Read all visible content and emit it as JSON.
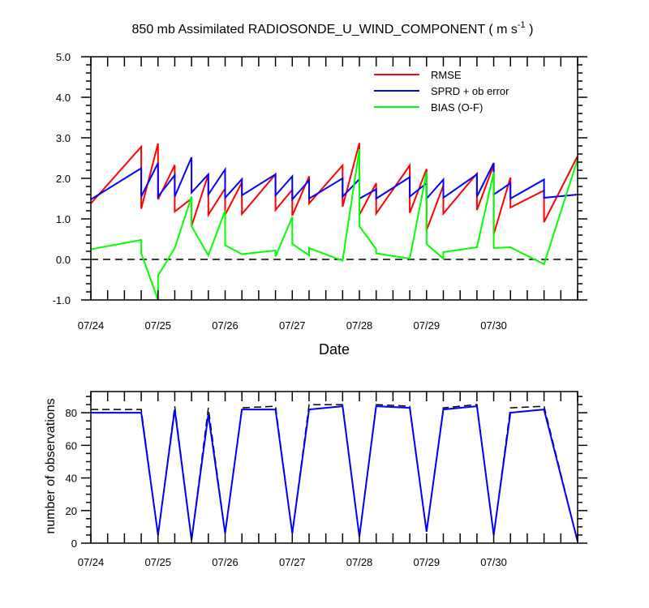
{
  "chart_data": [
    {
      "type": "line",
      "title": "850 mb Assimilated RADIOSONDE_U_WIND_COMPONENT ( m s",
      "title_superscript": "-1",
      "title_suffix": " )",
      "xlabel": "Date",
      "ylabel": "",
      "x_tick_labels": [
        "07/24",
        "07/25",
        "07/26",
        "07/27",
        "07/28",
        "07/29",
        "07/30"
      ],
      "xlim": [
        "07/24 00:00",
        "07/31 06:00"
      ],
      "ylim": [
        -1.0,
        5.0
      ],
      "y_tick_labels": [
        "-1.0",
        "0.0",
        "1.0",
        "2.0",
        "3.0",
        "4.0",
        "5.0"
      ],
      "zero_line": "dashed",
      "legend_position": "top-right",
      "series": [
        {
          "name": "RMSE",
          "color": "#ff0000",
          "points": [
            [
              "07/24 00:00",
              1.38
            ],
            [
              "07/24 18:00",
              2.78
            ],
            [
              "07/24 18:00",
              1.25
            ],
            [
              "07/25 00:00",
              2.86
            ],
            [
              "07/25 00:00",
              1.48
            ],
            [
              "07/25 06:00",
              2.33
            ],
            [
              "07/25 06:00",
              1.18
            ],
            [
              "07/25 12:00",
              1.5
            ],
            [
              "07/25 12:00",
              0.82
            ],
            [
              "07/25 18:00",
              2.1
            ],
            [
              "07/25 18:00",
              1.1
            ],
            [
              "07/26 00:00",
              1.75
            ],
            [
              "07/26 00:00",
              1.1
            ],
            [
              "07/26 06:00",
              1.9
            ],
            [
              "07/26 06:00",
              1.12
            ],
            [
              "07/26 18:00",
              2.1
            ],
            [
              "07/26 18:00",
              1.22
            ],
            [
              "07/27 00:00",
              1.72
            ],
            [
              "07/27 00:00",
              1.08
            ],
            [
              "07/27 06:00",
              2.05
            ],
            [
              "07/27 06:00",
              1.38
            ],
            [
              "07/27 18:00",
              2.32
            ],
            [
              "07/27 18:00",
              1.3
            ],
            [
              "07/28 00:00",
              2.87
            ],
            [
              "07/28 00:00",
              1.1
            ],
            [
              "07/28 06:00",
              1.88
            ],
            [
              "07/28 06:00",
              1.13
            ],
            [
              "07/28 18:00",
              2.32
            ],
            [
              "07/28 18:00",
              1.15
            ],
            [
              "07/29 00:00",
              2.23
            ],
            [
              "07/29 00:00",
              0.72
            ],
            [
              "07/29 06:00",
              1.82
            ],
            [
              "07/29 06:00",
              1.13
            ],
            [
              "07/29 18:00",
              2.12
            ],
            [
              "07/29 18:00",
              1.22
            ],
            [
              "07/30 00:00",
              2.33
            ],
            [
              "07/30 00:00",
              0.62
            ],
            [
              "07/30 06:00",
              2.02
            ],
            [
              "07/30 06:00",
              1.28
            ],
            [
              "07/30 18:00",
              1.7
            ],
            [
              "07/30 18:00",
              0.92
            ],
            [
              "07/31 06:00",
              2.55
            ]
          ]
        },
        {
          "name": "SPRD + ob error",
          "color": "#0000ff",
          "points": [
            [
              "07/24 00:00",
              1.48
            ],
            [
              "07/24 18:00",
              2.25
            ],
            [
              "07/24 18:00",
              1.55
            ],
            [
              "07/25 00:00",
              2.38
            ],
            [
              "07/25 00:00",
              1.55
            ],
            [
              "07/25 06:00",
              2.08
            ],
            [
              "07/25 06:00",
              1.55
            ],
            [
              "07/25 12:00",
              2.52
            ],
            [
              "07/25 12:00",
              1.65
            ],
            [
              "07/25 18:00",
              2.1
            ],
            [
              "07/25 18:00",
              1.6
            ],
            [
              "07/26 00:00",
              2.22
            ],
            [
              "07/26 00:00",
              1.52
            ],
            [
              "07/26 06:00",
              1.98
            ],
            [
              "07/26 06:00",
              1.58
            ],
            [
              "07/26 18:00",
              2.1
            ],
            [
              "07/26 18:00",
              1.58
            ],
            [
              "07/27 00:00",
              2.05
            ],
            [
              "07/27 00:00",
              1.48
            ],
            [
              "07/27 06:00",
              1.95
            ],
            [
              "07/27 06:00",
              1.5
            ],
            [
              "07/27 18:00",
              2.0
            ],
            [
              "07/27 18:00",
              1.55
            ],
            [
              "07/28 00:00",
              1.98
            ],
            [
              "07/28 00:00",
              1.5
            ],
            [
              "07/28 06:00",
              1.73
            ],
            [
              "07/28 06:00",
              1.5
            ],
            [
              "07/28 18:00",
              2.03
            ],
            [
              "07/28 18:00",
              1.55
            ],
            [
              "07/29 00:00",
              1.88
            ],
            [
              "07/29 00:00",
              1.5
            ],
            [
              "07/29 06:00",
              1.97
            ],
            [
              "07/29 06:00",
              1.52
            ],
            [
              "07/29 18:00",
              2.1
            ],
            [
              "07/29 18:00",
              1.55
            ],
            [
              "07/30 00:00",
              2.38
            ],
            [
              "07/30 00:00",
              1.6
            ],
            [
              "07/30 06:00",
              1.88
            ],
            [
              "07/30 06:00",
              1.5
            ],
            [
              "07/30 18:00",
              1.97
            ],
            [
              "07/30 18:00",
              1.52
            ],
            [
              "07/31 06:00",
              1.6
            ]
          ]
        },
        {
          "name": "BIAS (O-F)",
          "color": "#00ff00",
          "points": [
            [
              "07/24 00:00",
              0.25
            ],
            [
              "07/24 18:00",
              0.48
            ],
            [
              "07/24 18:00",
              0.15
            ],
            [
              "07/25 00:00",
              -1.0
            ],
            [
              "07/25 00:00",
              -0.4
            ],
            [
              "07/25 06:00",
              0.28
            ],
            [
              "07/25 12:00",
              1.55
            ],
            [
              "07/25 12:00",
              0.82
            ],
            [
              "07/25 18:00",
              0.1
            ],
            [
              "07/26 00:00",
              1.2
            ],
            [
              "07/26 00:00",
              0.35
            ],
            [
              "07/26 06:00",
              0.13
            ],
            [
              "07/26 18:00",
              0.22
            ],
            [
              "07/26 18:00",
              0.07
            ],
            [
              "07/27 00:00",
              1.05
            ],
            [
              "07/27 00:00",
              0.38
            ],
            [
              "07/27 06:00",
              0.1
            ],
            [
              "07/27 06:00",
              0.28
            ],
            [
              "07/27 18:00",
              -0.03
            ],
            [
              "07/28 00:00",
              2.72
            ],
            [
              "07/28 00:00",
              0.82
            ],
            [
              "07/28 06:00",
              0.25
            ],
            [
              "07/28 06:00",
              0.15
            ],
            [
              "07/28 18:00",
              0.02
            ],
            [
              "07/29 00:00",
              2.15
            ],
            [
              "07/29 00:00",
              0.38
            ],
            [
              "07/29 06:00",
              0.02
            ],
            [
              "07/29 06:00",
              0.18
            ],
            [
              "07/29 18:00",
              0.3
            ],
            [
              "07/30 00:00",
              2.15
            ],
            [
              "07/30 00:00",
              0.28
            ],
            [
              "07/30 06:00",
              0.3
            ],
            [
              "07/30 18:00",
              -0.12
            ],
            [
              "07/31 06:00",
              2.47
            ]
          ]
        }
      ]
    },
    {
      "type": "line",
      "title": "",
      "xlabel": "",
      "ylabel": "number of observations",
      "x_tick_labels": [
        "07/24",
        "07/25",
        "07/26",
        "07/27",
        "07/28",
        "07/29",
        "07/30"
      ],
      "xlim": [
        "07/24 00:00",
        "07/31 06:00"
      ],
      "ylim": [
        0,
        93
      ],
      "y_tick_labels": [
        "0",
        "20",
        "40",
        "60",
        "80"
      ],
      "series": [
        {
          "color": "#000000",
          "style": "dashed",
          "points": [
            [
              "07/24 00:00",
              82
            ],
            [
              "07/24 18:00",
              82
            ],
            [
              "07/25 00:00",
              5
            ],
            [
              "07/25 06:00",
              84
            ],
            [
              "07/25 12:00",
              2
            ],
            [
              "07/25 18:00",
              83
            ],
            [
              "07/26 00:00",
              6
            ],
            [
              "07/26 06:00",
              83
            ],
            [
              "07/26 18:00",
              84
            ],
            [
              "07/27 00:00",
              6
            ],
            [
              "07/27 06:00",
              85
            ],
            [
              "07/27 18:00",
              85
            ],
            [
              "07/28 00:00",
              4
            ],
            [
              "07/28 06:00",
              85
            ],
            [
              "07/28 18:00",
              84
            ],
            [
              "07/29 00:00",
              7
            ],
            [
              "07/29 06:00",
              83
            ],
            [
              "07/29 18:00",
              85
            ],
            [
              "07/30 00:00",
              5
            ],
            [
              "07/30 06:00",
              83
            ],
            [
              "07/30 18:00",
              84
            ],
            [
              "07/31 06:00",
              1
            ]
          ]
        },
        {
          "color": "#0000ff",
          "style": "solid",
          "points": [
            [
              "07/24 00:00",
              80
            ],
            [
              "07/24 18:00",
              80
            ],
            [
              "07/25 00:00",
              5
            ],
            [
              "07/25 06:00",
              82
            ],
            [
              "07/25 12:00",
              2
            ],
            [
              "07/25 18:00",
              79
            ],
            [
              "07/26 00:00",
              6
            ],
            [
              "07/26 06:00",
              82
            ],
            [
              "07/26 18:00",
              82
            ],
            [
              "07/27 00:00",
              6
            ],
            [
              "07/27 06:00",
              82
            ],
            [
              "07/27 18:00",
              84
            ],
            [
              "07/28 00:00",
              4
            ],
            [
              "07/28 06:00",
              84
            ],
            [
              "07/28 18:00",
              83
            ],
            [
              "07/29 00:00",
              7
            ],
            [
              "07/29 06:00",
              82
            ],
            [
              "07/29 18:00",
              84
            ],
            [
              "07/30 00:00",
              5
            ],
            [
              "07/30 06:00",
              80
            ],
            [
              "07/30 18:00",
              82
            ],
            [
              "07/31 06:00",
              1
            ]
          ]
        }
      ]
    }
  ]
}
